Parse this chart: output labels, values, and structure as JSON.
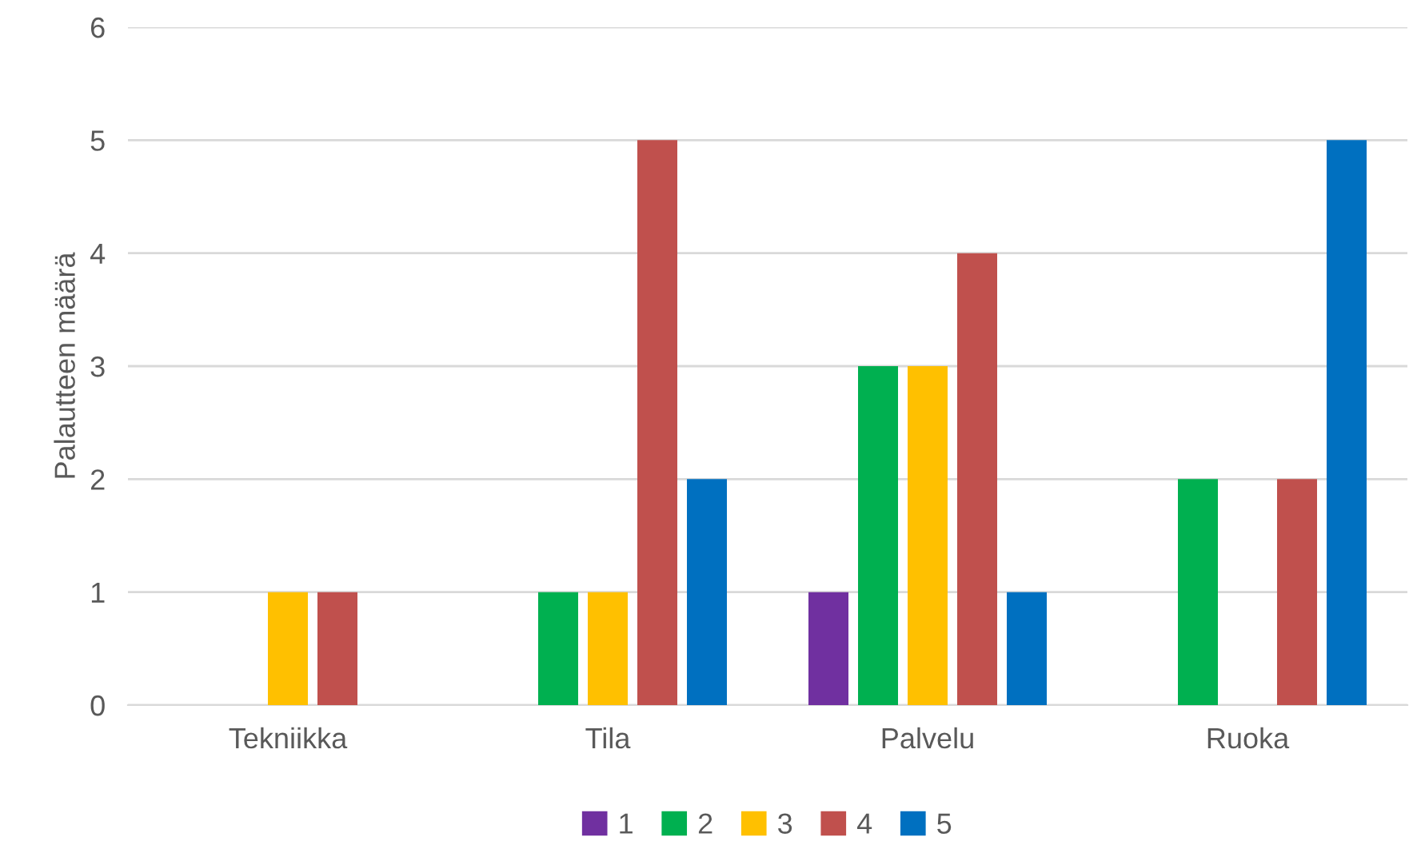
{
  "chart_data": {
    "type": "bar",
    "ylabel": "Palautteen määrä",
    "categories": [
      "Tekniikka",
      "Tila",
      "Palvelu",
      "Ruoka"
    ],
    "series": [
      {
        "name": "1",
        "color": "#7030a0",
        "values": [
          0,
          0,
          1,
          0
        ]
      },
      {
        "name": "2",
        "color": "#00b050",
        "values": [
          0,
          1,
          3,
          2
        ]
      },
      {
        "name": "3",
        "color": "#ffc000",
        "values": [
          1,
          1,
          3,
          0
        ]
      },
      {
        "name": "4",
        "color": "#c0504d",
        "values": [
          1,
          5,
          4,
          2
        ]
      },
      {
        "name": "5",
        "color": "#0070c0",
        "values": [
          0,
          2,
          1,
          5
        ]
      }
    ],
    "ylim": [
      0,
      6
    ],
    "yticks": [
      0,
      1,
      2,
      3,
      4,
      5,
      6
    ],
    "grid": "y",
    "legend": "bottom"
  }
}
